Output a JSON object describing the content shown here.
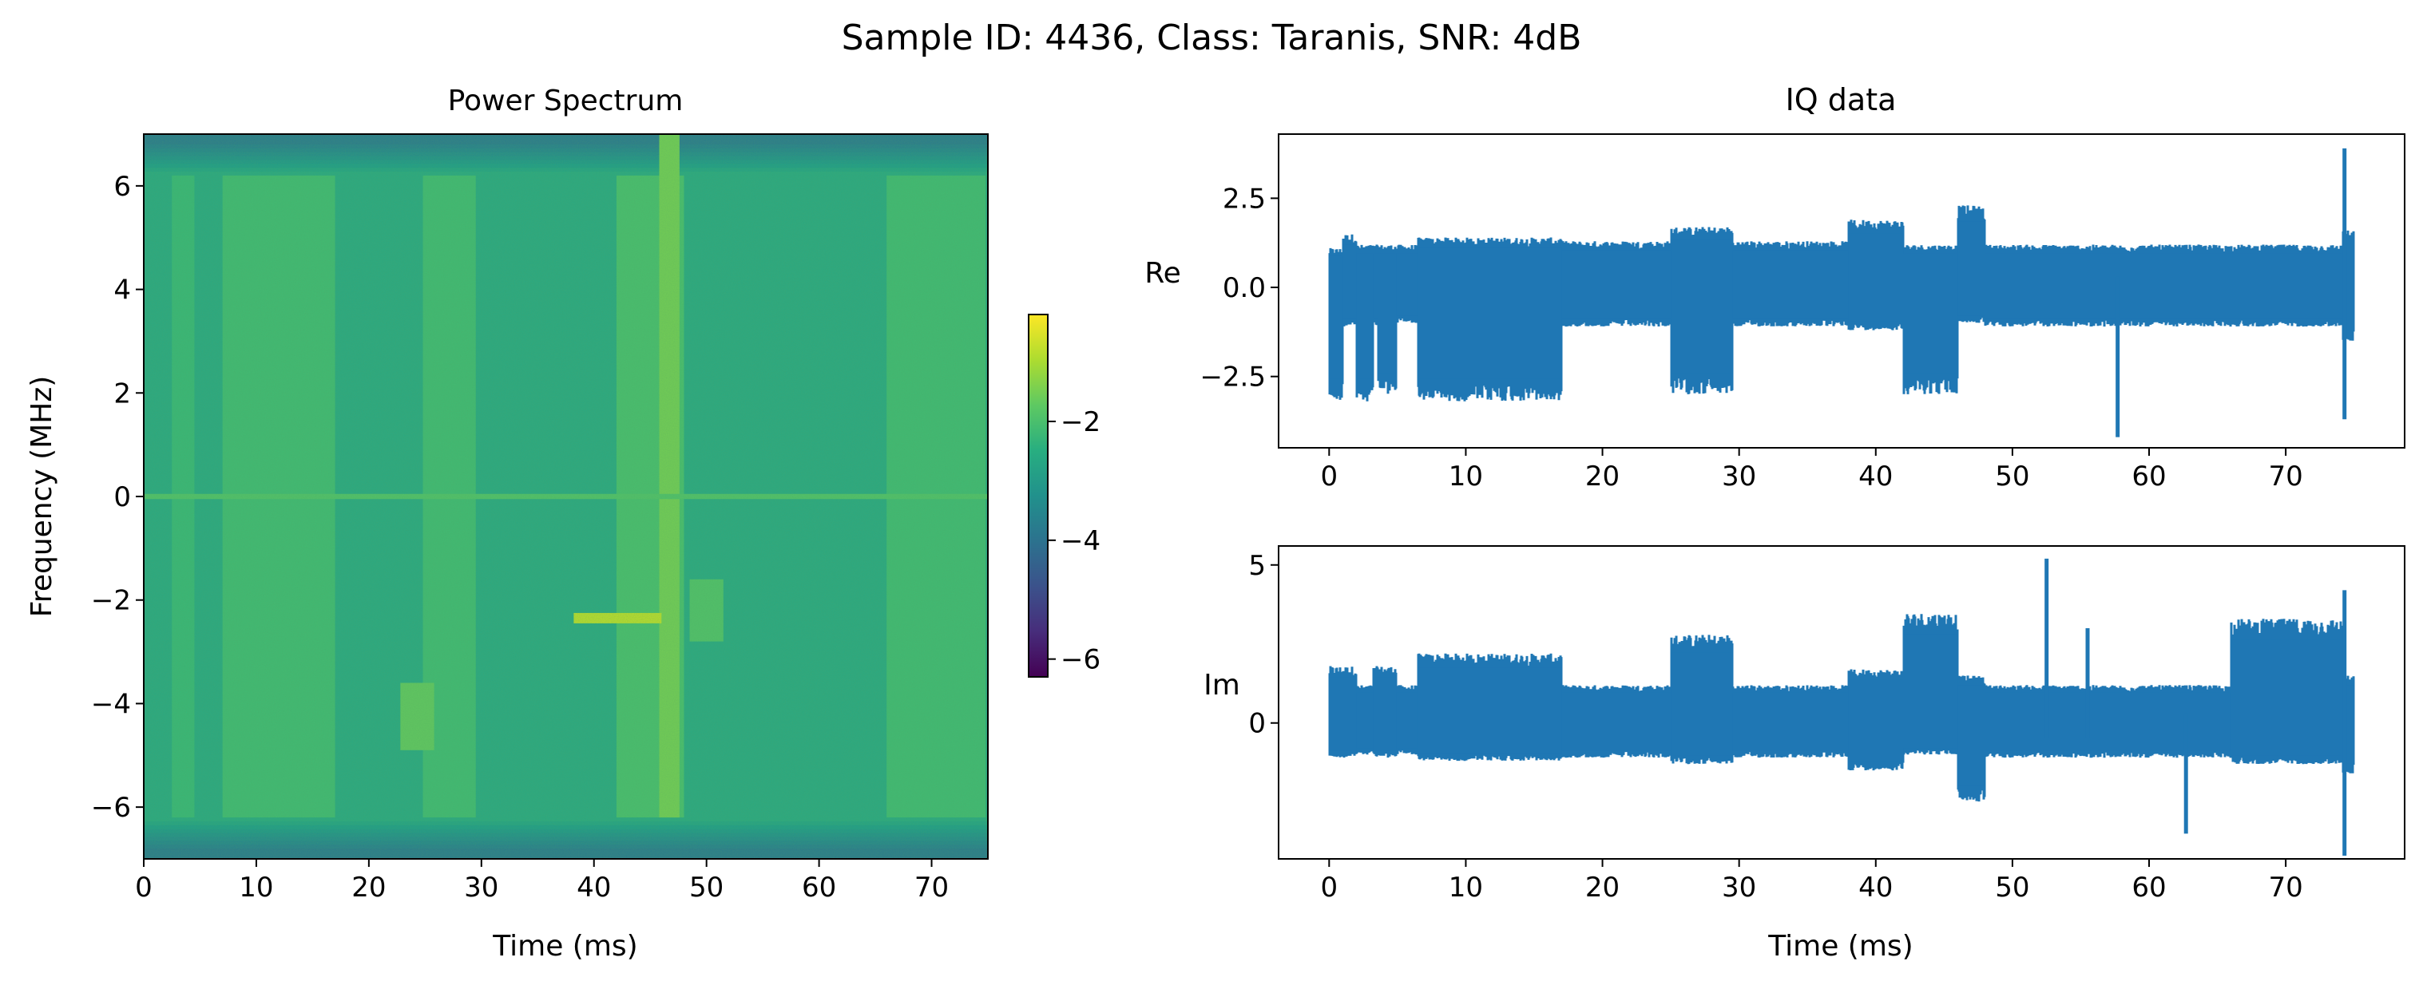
{
  "chart_data": {
    "suptitle": "Sample ID: 4436, Class: Taranis, SNR: 4dB",
    "spectrogram": {
      "type": "heatmap",
      "title": "Power Spectrum",
      "xlabel": "Time (ms)",
      "ylabel": "Frequency (MHz)",
      "xlim": [
        0,
        75
      ],
      "ylim": [
        -7,
        7
      ],
      "xticks": [
        0,
        10,
        20,
        30,
        40,
        50,
        60,
        70
      ],
      "yticks": [
        -6,
        -4,
        -2,
        0,
        2,
        4,
        6
      ],
      "colormap": "viridis",
      "colorbar": {
        "range": [
          -6.3,
          -0.2
        ],
        "ticks": [
          -6,
          -4,
          -2
        ]
      },
      "background_level": -2.6,
      "band_edge_level": -3.8,
      "band_edges_mhz": [
        -6.2,
        6.2
      ],
      "features": [
        {
          "t": [
            2.5,
            4.5
          ],
          "f": [
            -6.2,
            6.2
          ],
          "level": -2.2
        },
        {
          "t": [
            7,
            17
          ],
          "f": [
            -6.2,
            6.2
          ],
          "level": -2.1
        },
        {
          "t": [
            24.8,
            29.5
          ],
          "f": [
            -6.2,
            6.2
          ],
          "level": -2.1
        },
        {
          "t": [
            42,
            48
          ],
          "f": [
            -6.2,
            6.2
          ],
          "level": -2.0
        },
        {
          "t": [
            66,
            74.8
          ],
          "f": [
            -6.2,
            6.2
          ],
          "level": -2.1
        },
        {
          "t": [
            45.8,
            47.6
          ],
          "f": [
            -6.2,
            7
          ],
          "level": -1.5
        },
        {
          "t": [
            22.8,
            25.8
          ],
          "f": [
            -4.9,
            -3.6
          ],
          "level": -1.7
        },
        {
          "t": [
            38.2,
            46
          ],
          "f": [
            -2.45,
            -2.25
          ],
          "level": -0.8
        },
        {
          "t": [
            48.5,
            51.5
          ],
          "f": [
            -2.8,
            -1.6
          ],
          "level": -1.9
        },
        {
          "t": [
            0,
            75
          ],
          "f": [
            -0.05,
            0.05
          ],
          "level": -1.9
        }
      ]
    },
    "iq": {
      "title": "IQ data",
      "xlabel": "Time (ms)",
      "color": "#1f77b4",
      "xlim": [
        -3.7,
        78.7
      ],
      "xticks": [
        0,
        10,
        20,
        30,
        40,
        50,
        60,
        70
      ],
      "re": {
        "ylabel": "Re",
        "ylim": [
          -4.5,
          4.3
        ],
        "yticks": [
          -2.5,
          0.0,
          2.5
        ],
        "ytick_labels": [
          "−2.5",
          "0.0",
          "2.5"
        ],
        "segments": [
          {
            "t": [
              0,
              1
            ],
            "lo": -3.2,
            "hi": 1.1
          },
          {
            "t": [
              1,
              2
            ],
            "lo": -1.1,
            "hi": 1.5
          },
          {
            "t": [
              2,
              3.2
            ],
            "lo": -3.2,
            "hi": 1.2
          },
          {
            "t": [
              3.2,
              3.6
            ],
            "lo": -1.1,
            "hi": 1.2
          },
          {
            "t": [
              3.6,
              4.9
            ],
            "lo": -3.0,
            "hi": 1.2
          },
          {
            "t": [
              4.9,
              6.5
            ],
            "lo": -1.0,
            "hi": 1.2
          },
          {
            "t": [
              6.5,
              17
            ],
            "lo": -3.2,
            "hi": 1.4
          },
          {
            "t": [
              17,
              25
            ],
            "lo": -1.1,
            "hi": 1.3
          },
          {
            "t": [
              25,
              29.5
            ],
            "lo": -3.0,
            "hi": 1.7
          },
          {
            "t": [
              29.5,
              38
            ],
            "lo": -1.1,
            "hi": 1.3
          },
          {
            "t": [
              38,
              42
            ],
            "lo": -1.2,
            "hi": 1.9
          },
          {
            "t": [
              42,
              46
            ],
            "lo": -3.0,
            "hi": 1.2
          },
          {
            "t": [
              46,
              48
            ],
            "lo": -1.0,
            "hi": 2.3
          },
          {
            "t": [
              48,
              74.2
            ],
            "lo": -1.1,
            "hi": 1.2
          },
          {
            "t": [
              74.2,
              75
            ],
            "lo": -1.5,
            "hi": 1.6
          }
        ],
        "spikes": [
          {
            "t": 57.7,
            "lo": -4.2,
            "hi": 0.3
          },
          {
            "t": 74.3,
            "lo": -3.7,
            "hi": 3.9
          }
        ]
      },
      "im": {
        "ylabel": "Im",
        "ylim": [
          -4.3,
          5.6
        ],
        "yticks": [
          0,
          5
        ],
        "ytick_labels": [
          "0",
          "5"
        ],
        "segments": [
          {
            "t": [
              0,
              2
            ],
            "lo": -1.1,
            "hi": 1.8
          },
          {
            "t": [
              2,
              3.2
            ],
            "lo": -1.0,
            "hi": 1.2
          },
          {
            "t": [
              3.2,
              4.9
            ],
            "lo": -1.1,
            "hi": 1.8
          },
          {
            "t": [
              4.9,
              6.5
            ],
            "lo": -1.0,
            "hi": 1.2
          },
          {
            "t": [
              6.5,
              17
            ],
            "lo": -1.2,
            "hi": 2.2
          },
          {
            "t": [
              17,
              25
            ],
            "lo": -1.1,
            "hi": 1.2
          },
          {
            "t": [
              25,
              29.5
            ],
            "lo": -1.3,
            "hi": 2.8
          },
          {
            "t": [
              29.5,
              38
            ],
            "lo": -1.1,
            "hi": 1.2
          },
          {
            "t": [
              38,
              42
            ],
            "lo": -1.5,
            "hi": 1.7
          },
          {
            "t": [
              42,
              46
            ],
            "lo": -1.0,
            "hi": 3.5
          },
          {
            "t": [
              46,
              48
            ],
            "lo": -2.5,
            "hi": 1.5
          },
          {
            "t": [
              48,
              66
            ],
            "lo": -1.1,
            "hi": 1.2
          },
          {
            "t": [
              66,
              74.2
            ],
            "lo": -1.3,
            "hi": 3.3
          },
          {
            "t": [
              74.2,
              75
            ],
            "lo": -1.6,
            "hi": 1.5
          }
        ],
        "spikes": [
          {
            "t": 52.5,
            "lo": -0.5,
            "hi": 5.2
          },
          {
            "t": 55.5,
            "lo": -0.5,
            "hi": 3.0
          },
          {
            "t": 62.7,
            "lo": -3.5,
            "hi": 0.3
          },
          {
            "t": 74.3,
            "lo": -4.2,
            "hi": 4.2
          }
        ]
      }
    }
  }
}
